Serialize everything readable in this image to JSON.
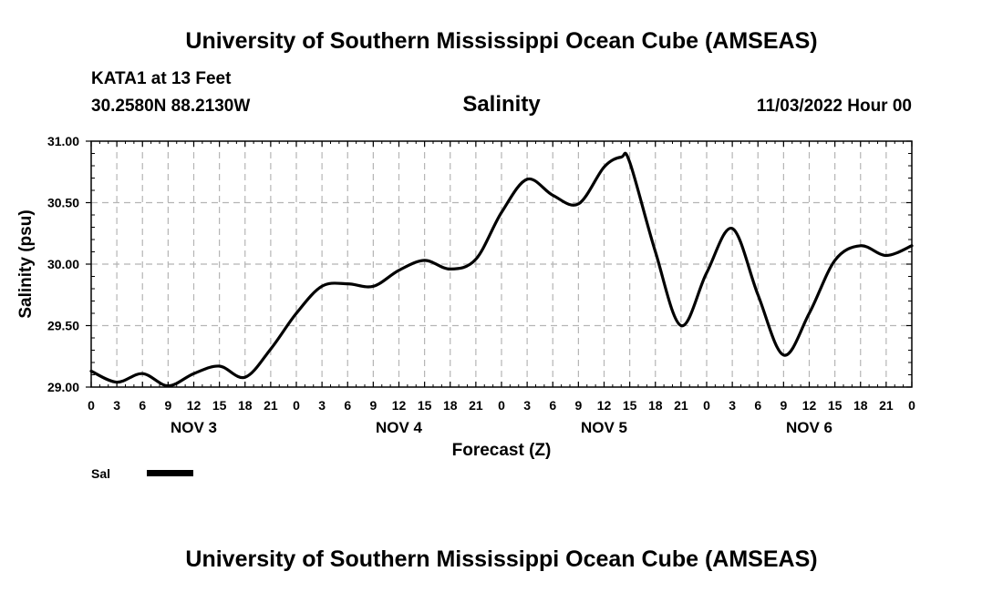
{
  "header": {
    "title_top": "University of Southern Mississippi Ocean Cube (AMSEAS)",
    "station": "KATA1 at 13 Feet",
    "coords": "30.2580N  88.2130W",
    "datetime": "11/03/2022 Hour 00",
    "title_bottom": "University of Southern Mississippi Ocean Cube (AMSEAS)"
  },
  "legend": {
    "label": "Sal",
    "color": "#000000"
  },
  "chart_data": {
    "type": "line",
    "title": "Salinity",
    "xlabel": "Forecast (Z)",
    "ylabel": "Salinity (psu)",
    "xlim": [
      0,
      96
    ],
    "ylim": [
      29.0,
      31.0
    ],
    "grid": true,
    "y_ticks": [
      "29.00",
      "29.50",
      "30.00",
      "30.50",
      "31.00"
    ],
    "x_tick_labels": [
      "0",
      "3",
      "6",
      "9",
      "12",
      "15",
      "18",
      "21",
      "0",
      "3",
      "6",
      "9",
      "12",
      "15",
      "18",
      "21",
      "0",
      "3",
      "6",
      "9",
      "12",
      "15",
      "18",
      "21",
      "0",
      "3",
      "6",
      "9",
      "12",
      "15",
      "18",
      "21",
      "0"
    ],
    "day_labels": [
      {
        "label": "NOV 3",
        "hour": 12
      },
      {
        "label": "NOV 4",
        "hour": 36
      },
      {
        "label": "NOV 5",
        "hour": 60
      },
      {
        "label": "NOV 6",
        "hour": 84
      }
    ],
    "series": [
      {
        "name": "Sal",
        "x": [
          0,
          3,
          6,
          9,
          12,
          15,
          18,
          21,
          24,
          27,
          30,
          33,
          36,
          39,
          42,
          45,
          48,
          51,
          54,
          57,
          60,
          62,
          63,
          66,
          69,
          72,
          75,
          78,
          81,
          84,
          87,
          90,
          93,
          96
        ],
        "y": [
          29.13,
          29.04,
          29.11,
          29.01,
          29.11,
          29.17,
          29.08,
          29.31,
          29.6,
          29.82,
          29.84,
          29.82,
          29.95,
          30.03,
          29.96,
          30.04,
          30.42,
          30.69,
          30.56,
          30.49,
          30.79,
          30.87,
          30.83,
          30.1,
          29.5,
          29.93,
          30.29,
          29.75,
          29.26,
          29.6,
          30.03,
          30.15,
          30.07,
          30.15
        ]
      }
    ]
  }
}
